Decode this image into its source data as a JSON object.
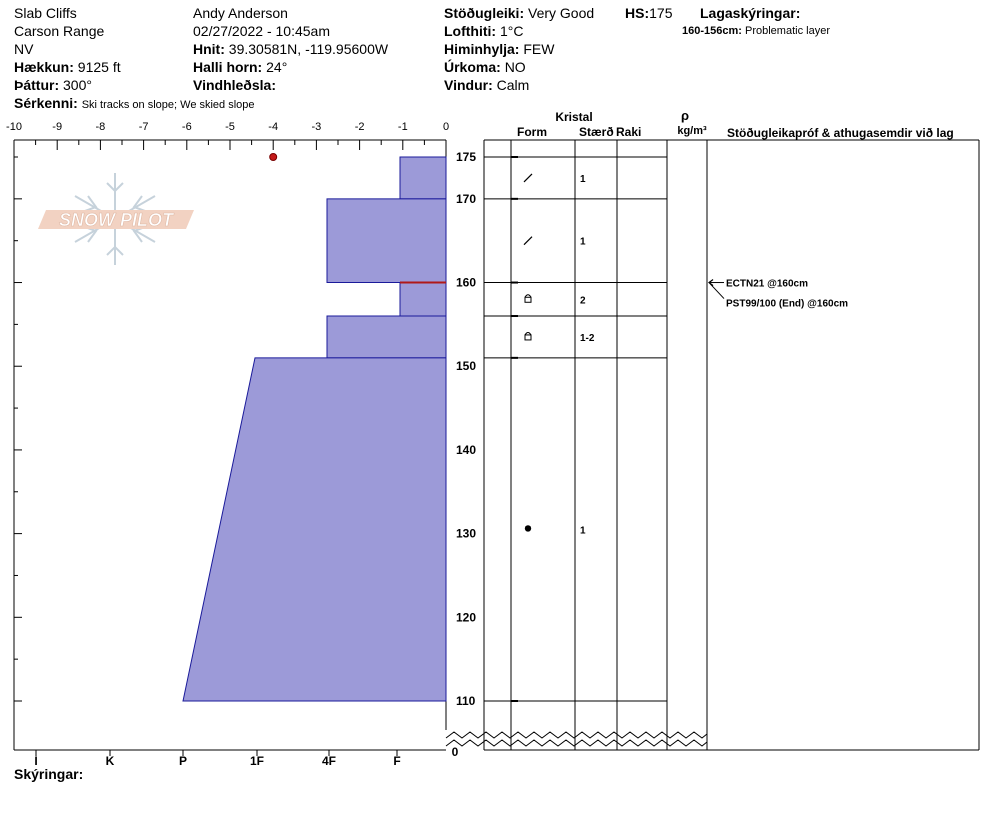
{
  "header": {
    "location": "Slab Cliffs",
    "range": "Carson Range",
    "state": "NV",
    "elevation_label": "Hækkun:",
    "elevation": "9125 ft",
    "aspect_label": "Þáttur:",
    "aspect": "300°",
    "features_label": "Sérkenni:",
    "features": "Ski tracks on slope; We skied slope",
    "observer": "Andy Anderson",
    "datetime": "02/27/2022 - 10:45am",
    "coords_label": "Hnit:",
    "coords": "39.30581N, -119.95600W",
    "slope_label": "Halli horn:",
    "slope": "24°",
    "wind_loading_label": "Vindhleðsla:",
    "wind_loading": "",
    "stability_label": "Stöðugleiki:",
    "stability": "Very Good",
    "hs_label": "HS:",
    "hs": "175",
    "air_temp_label": "Lofthiti:",
    "air_temp": "1°C",
    "sky_label": "Himinhylja:",
    "sky": "FEW",
    "precip_label": "Úrkoma:",
    "precip": "NO",
    "wind_label": "Vindur:",
    "wind": "Calm",
    "layer_notes_label": "Lagaskýringar:",
    "layer_notes_range": "160-156cm:",
    "layer_notes_text": "Problematic layer",
    "notes_label": "Skýringar:"
  },
  "logo": {
    "text": "SNOW PILOT"
  },
  "columns": {
    "crystal": "Kristal",
    "form": "Form",
    "size": "Stærð",
    "moisture": "Raki",
    "rho": "ρ",
    "density_unit": "kg/m³",
    "tests": "Stöðugleikapróf & athugasemdir við lag"
  },
  "chart_data": {
    "type": "snow_profile",
    "temperature_axis": {
      "min": -10,
      "max": 0,
      "ticks": [
        "-10",
        "-9",
        "-8",
        "-7",
        "-6",
        "-5",
        "-4",
        "-3",
        "-2",
        "-1",
        "0"
      ]
    },
    "height_axis": {
      "min": 110,
      "max": 175,
      "ticks": [
        "175",
        "170",
        "160",
        "150",
        "140",
        "130",
        "120",
        "110"
      ],
      "break_label": "0"
    },
    "hardness_axis": {
      "labels": [
        "I",
        "K",
        "P",
        "1F",
        "4F",
        "F"
      ]
    },
    "hardness_layers": [
      {
        "top": 175,
        "bottom": 170,
        "hardness_top": "F",
        "hardness_bottom": "F"
      },
      {
        "top": 170,
        "bottom": 160,
        "hardness_top": "4F",
        "hardness_bottom": "4F"
      },
      {
        "top": 160,
        "bottom": 156,
        "hardness_top": "F",
        "hardness_bottom": "F"
      },
      {
        "top": 156,
        "bottom": 151,
        "hardness_top": "4F",
        "hardness_bottom": "4F"
      },
      {
        "top": 151,
        "bottom": 110,
        "hardness_top": "1F-",
        "hardness_bottom": "P-"
      }
    ],
    "weak_layer_height": 160,
    "temperature_points": [
      {
        "temp": -4,
        "height": 175
      }
    ],
    "layer_boundaries": [
      175,
      170,
      160,
      156,
      151,
      110
    ],
    "crystals": [
      {
        "height": 172.5,
        "form": "decomposing",
        "size": "1"
      },
      {
        "height": 165,
        "form": "decomposing",
        "size": "1"
      },
      {
        "height": 158,
        "form": "faceted",
        "size": "2"
      },
      {
        "height": 153.5,
        "form": "faceted",
        "size": "1-2"
      },
      {
        "height": 130.5,
        "form": "melt",
        "size": "1"
      }
    ],
    "tests": [
      {
        "height": 160,
        "label": "ECTN21 @160cm"
      },
      {
        "height": 160,
        "label": "PST99/100 (End) @160cm"
      }
    ]
  }
}
